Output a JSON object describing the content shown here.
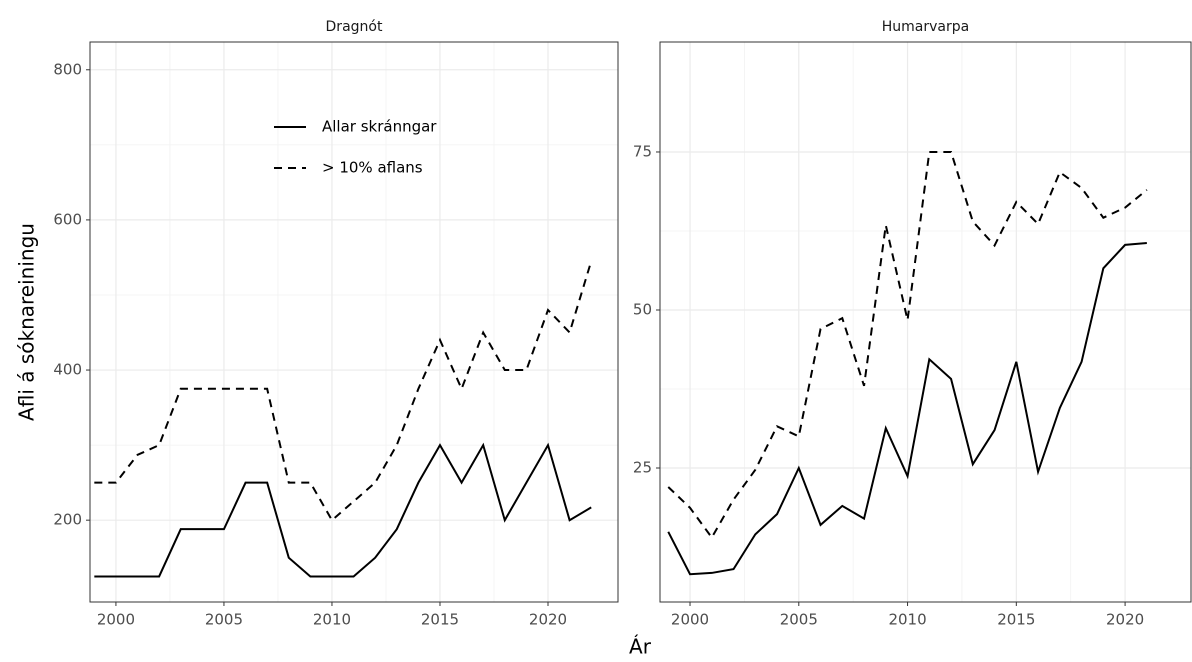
{
  "x_label": "Ár",
  "y_label": "Afli á sóknareiningu",
  "chart_data": [
    {
      "type": "line",
      "title": "Dragnót",
      "x": [
        1999,
        2000,
        2001,
        2002,
        2003,
        2004,
        2005,
        2006,
        2007,
        2008,
        2009,
        2010,
        2011,
        2012,
        2013,
        2014,
        2015,
        2016,
        2017,
        2018,
        2019,
        2020,
        2021,
        2022
      ],
      "xlim": [
        1998.8,
        2023.24
      ],
      "xticks": [
        2000,
        2005,
        2010,
        2015,
        2020
      ],
      "ylim": [
        91,
        837
      ],
      "yticks": [
        200,
        400,
        600,
        800
      ],
      "grid": true,
      "legend": "top",
      "series": [
        {
          "name": "Allar skránngar",
          "color": "#000000",
          "linestyle": "solid",
          "values": [
            125,
            125,
            125,
            125,
            188,
            188,
            188,
            250,
            250,
            150,
            125,
            125,
            125,
            150,
            188,
            250,
            300,
            250,
            300,
            200,
            250,
            300,
            200,
            217
          ]
        },
        {
          "name": "> 10% aflans",
          "color": "#000000",
          "linestyle": "dashed",
          "values": [
            250,
            250,
            287,
            300,
            375,
            375,
            375,
            375,
            375,
            250,
            250,
            200,
            225,
            250,
            300,
            375,
            440,
            375,
            450,
            400,
            400,
            480,
            450,
            545
          ]
        }
      ]
    },
    {
      "type": "line",
      "title": "Humarvarpa",
      "x": [
        1999,
        2000,
        2001,
        2002,
        2003,
        2004,
        2005,
        2006,
        2007,
        2008,
        2009,
        2010,
        2011,
        2012,
        2013,
        2014,
        2015,
        2016,
        2017,
        2018,
        2019,
        2020,
        2021
      ],
      "xlim": [
        1998.62,
        2023.03
      ],
      "xticks": [
        2000,
        2005,
        2010,
        2015,
        2020
      ],
      "ylim": [
        3.8,
        92.4
      ],
      "yticks": [
        25,
        50,
        75
      ],
      "grid": true,
      "series": [
        {
          "name": "Allar skránngar",
          "color": "#000000",
          "linestyle": "solid",
          "values": [
            14.9,
            8.2,
            8.4,
            9.0,
            14.5,
            17.7,
            25,
            16,
            19,
            17,
            31.3,
            23.7,
            42.2,
            39.1,
            25.6,
            31,
            41.8,
            24.4,
            34.5,
            41.8,
            56.6,
            60.3,
            60.6
          ]
        },
        {
          "name": "> 10% aflans",
          "color": "#000000",
          "linestyle": "dashed",
          "values": [
            22,
            18.7,
            14,
            20,
            24.7,
            31.6,
            30,
            47,
            48.7,
            38,
            63.4,
            48.4,
            75,
            75,
            64,
            60.2,
            67.1,
            63.6,
            71.8,
            69.3,
            64.6,
            66.2,
            69
          ]
        }
      ]
    }
  ]
}
